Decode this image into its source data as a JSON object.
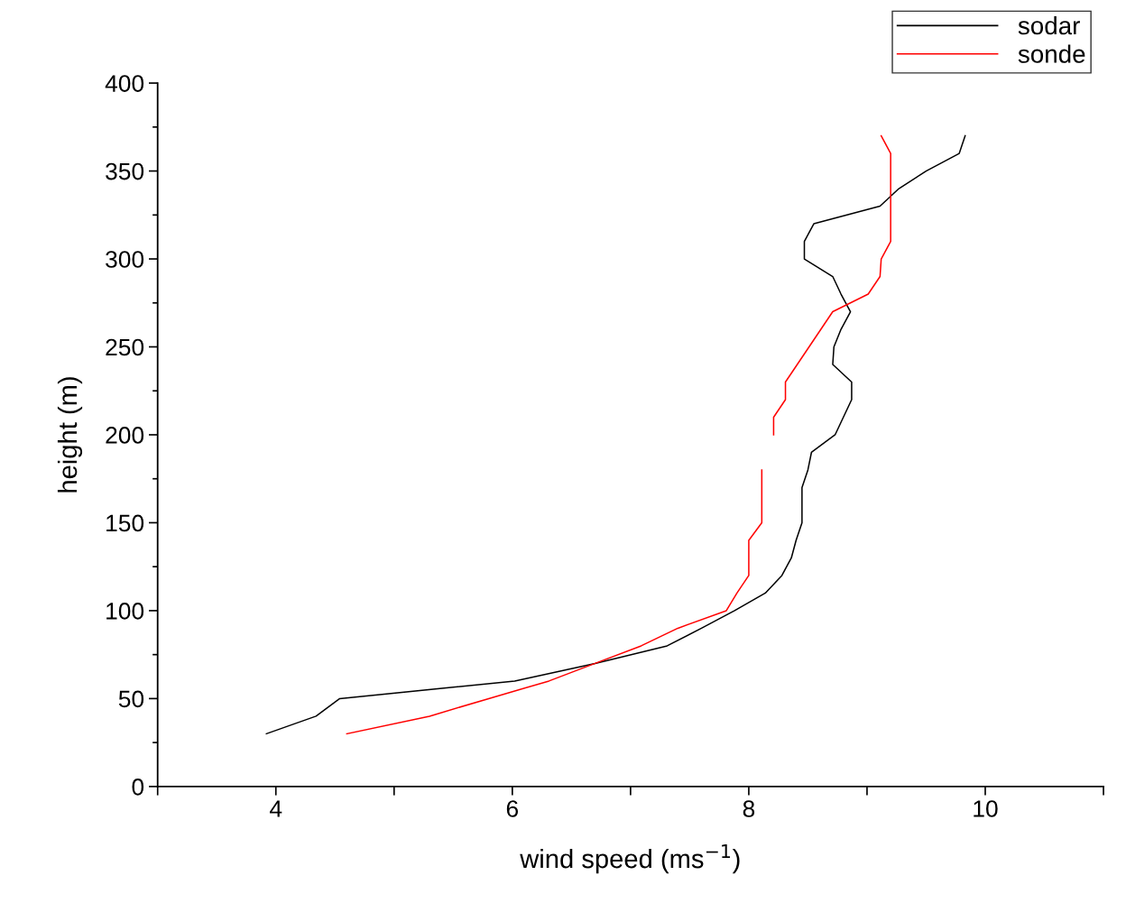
{
  "chart_data": {
    "type": "line",
    "xlabel": "wind speed (ms$^{−1}$)",
    "ylabel": "height (m)",
    "xlim": [
      3,
      11
    ],
    "xticks": [
      {
        "value": 3,
        "label": null
      },
      4,
      {
        "value": 5,
        "label": null
      },
      6,
      {
        "value": 7,
        "label": null
      },
      8,
      {
        "value": 9,
        "label": null
      },
      10,
      {
        "value": 11,
        "label": null
      }
    ],
    "ylim": [
      0,
      400
    ],
    "yticks": [
      0,
      50,
      100,
      150,
      200,
      250,
      300,
      350,
      400
    ],
    "grid": false,
    "legend": "top right",
    "marker": "none",
    "line_style": "solid",
    "series": [
      {
        "name": "sodar",
        "color": "#000000",
        "x": [
          3.92,
          4.34,
          4.54,
          6.02,
          6.7,
          7.31,
          7.6,
          7.88,
          8.14,
          8.28,
          8.36,
          8.4,
          8.45,
          8.45,
          8.45,
          8.5,
          8.53,
          8.73,
          8.8,
          8.87,
          8.87,
          8.71,
          8.72,
          8.78,
          8.86,
          8.78,
          8.71,
          8.47,
          8.47,
          8.55,
          9.11,
          9.27,
          9.5,
          9.78,
          9.83
        ],
        "values": [
          30,
          40,
          50,
          60,
          70,
          80,
          90,
          100,
          110,
          120,
          130,
          140,
          150,
          160,
          170,
          180,
          190,
          200,
          210,
          220,
          230,
          240,
          250,
          260,
          270,
          280,
          290,
          300,
          310,
          320,
          330,
          340,
          350,
          360,
          370
        ]
      },
      {
        "name": "sonde",
        "color": "#ff0000",
        "x": [
          4.6,
          5.3,
          5.8,
          6.31,
          6.7,
          7.09,
          7.4,
          7.81,
          7.9,
          8.0,
          8.0,
          8.0,
          8.11,
          8.11,
          8.11,
          8.11,
          null,
          8.21,
          8.21,
          8.31,
          8.31,
          8.41,
          8.51,
          8.61,
          8.71,
          9.01,
          9.11,
          9.12,
          9.2,
          9.2,
          9.2,
          9.2,
          9.2,
          9.2,
          9.12
        ],
        "values": [
          30,
          40,
          50,
          60,
          70,
          80,
          90,
          100,
          110,
          120,
          130,
          140,
          150,
          160,
          170,
          180,
          null,
          200,
          210,
          220,
          230,
          240,
          250,
          260,
          270,
          280,
          290,
          300,
          310,
          320,
          330,
          340,
          350,
          360,
          370
        ]
      }
    ]
  }
}
